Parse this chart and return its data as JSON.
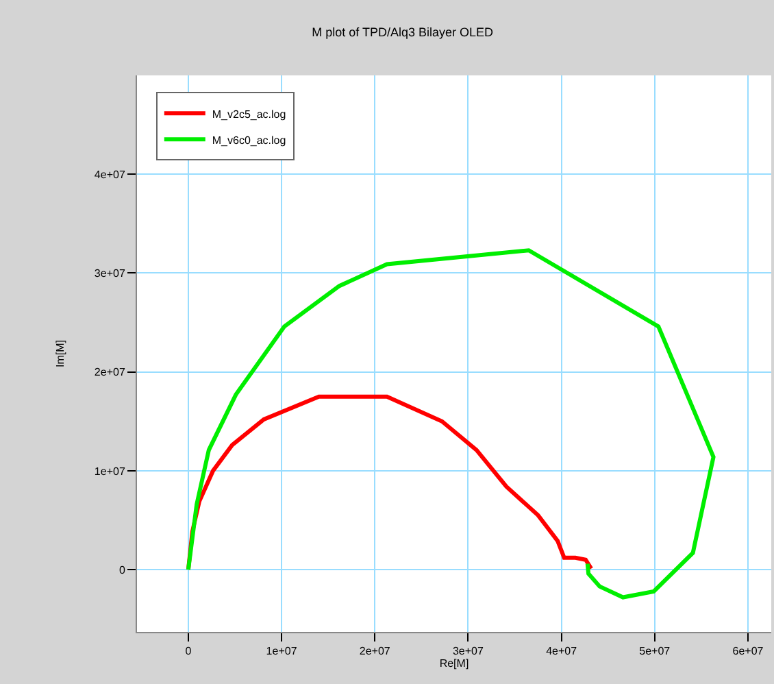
{
  "chart_data": {
    "type": "line",
    "title": "M plot of TPD/Alq3 Bilayer OLED",
    "xlabel": "Re[M]",
    "ylabel": "Im[M]",
    "series": [
      {
        "name": "M_v2c5_ac.log",
        "color": "#ff0000",
        "x": [
          0,
          440000.0,
          1180000.0,
          2650000.0,
          4700000.0,
          8100000.0,
          14000000.0,
          21300000.0,
          27200000.0,
          30900000.0,
          34100000.0,
          37500000.0,
          39600000.0,
          40300000.0,
          41500000.0,
          42600000.0,
          43200000.0
        ],
        "values": [
          0,
          3860000.0,
          6900000.0,
          10000000.0,
          12600000.0,
          15200000.0,
          17500000.0,
          17500000.0,
          15000000.0,
          12100000.0,
          8400000.0,
          5500000.0,
          2900000.0,
          1200000.0,
          1200000.0,
          1000000.0,
          100000.0
        ]
      },
      {
        "name": "M_v6c0_ac.log",
        "color": "#00ee00",
        "x": [
          0,
          900000.0,
          2200000.0,
          5100000.0,
          10300000.0,
          16200000.0,
          21300000.0,
          36500000.0,
          50400000.0,
          56300000.0,
          54100000.0,
          49900000.0,
          46600000.0,
          44100000.0,
          42900000.0,
          42800000.0
        ],
        "values": [
          0,
          6600000.0,
          12100000.0,
          17700000.0,
          24600000.0,
          28700000.0,
          30900000.0,
          32300000.0,
          24600000.0,
          11400000.0,
          1700000.0,
          -2200000.0,
          -2800000.0,
          -1700000.0,
          -400000.0,
          600000.0
        ]
      }
    ],
    "xlim": [
      -5500000.0,
      62500000.0
    ],
    "ylim": [
      -6300000.0,
      50000000.0
    ],
    "xticks": [
      0,
      {
        "value": 10000000.0,
        "label": "1e+07"
      },
      {
        "value": 20000000.0,
        "label": "2e+07"
      },
      {
        "value": 30000000.0,
        "label": "3e+07"
      },
      {
        "value": 40000000.0,
        "label": "4e+07"
      },
      {
        "value": 50000000.0,
        "label": "5e+07"
      },
      {
        "value": 60000000.0,
        "label": "6e+07"
      }
    ],
    "yticks": [
      0,
      {
        "value": 10000000.0,
        "label": "1e+07"
      },
      {
        "value": 20000000.0,
        "label": "2e+07"
      },
      {
        "value": 30000000.0,
        "label": "3e+07"
      },
      {
        "value": 40000000.0,
        "label": "4e+07"
      }
    ],
    "grid": true,
    "legend": "top left",
    "line_style": "solid",
    "marker": "none"
  }
}
